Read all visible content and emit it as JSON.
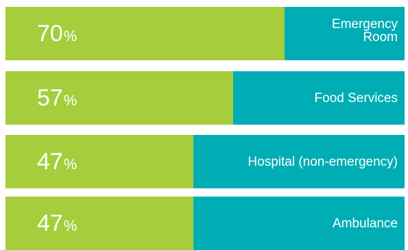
{
  "colors": {
    "fill": "#a6cd3b",
    "rest": "#00adb5"
  },
  "chart_data": {
    "type": "bar",
    "orientation": "horizontal",
    "unit": "%",
    "xlim": [
      0,
      100
    ],
    "categories": [
      "Emergency Room",
      "Food Services",
      "Hospital (non-emergency)",
      "Ambulance"
    ],
    "values": [
      70,
      57,
      47,
      47
    ],
    "value_labels": [
      "70",
      "57",
      "47",
      "47"
    ],
    "grid": false,
    "legend": "none"
  }
}
